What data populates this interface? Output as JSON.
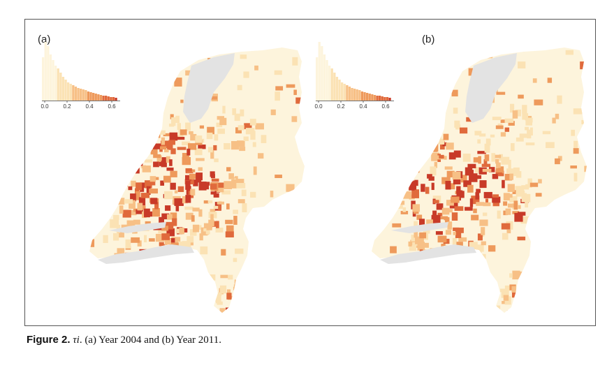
{
  "figure": {
    "panels": [
      {
        "label": "(a)",
        "histogram_ticks": [
          "0.0",
          "0.2",
          "0.4",
          "0.6"
        ]
      },
      {
        "label": "(b)",
        "histogram_ticks": [
          "0.0",
          "0.2",
          "0.4",
          "0.6"
        ]
      }
    ],
    "caption": {
      "figure_label": "Figure 2.",
      "symbol": "τi",
      "text": ". (a) Year 2004 and (b) Year 2011."
    },
    "colors": {
      "water": "#e3e3e3",
      "scale": [
        "#fdf4dc",
        "#fbe2b4",
        "#f7c086",
        "#ee9a5c",
        "#e06a3c",
        "#c83a28"
      ]
    }
  }
}
